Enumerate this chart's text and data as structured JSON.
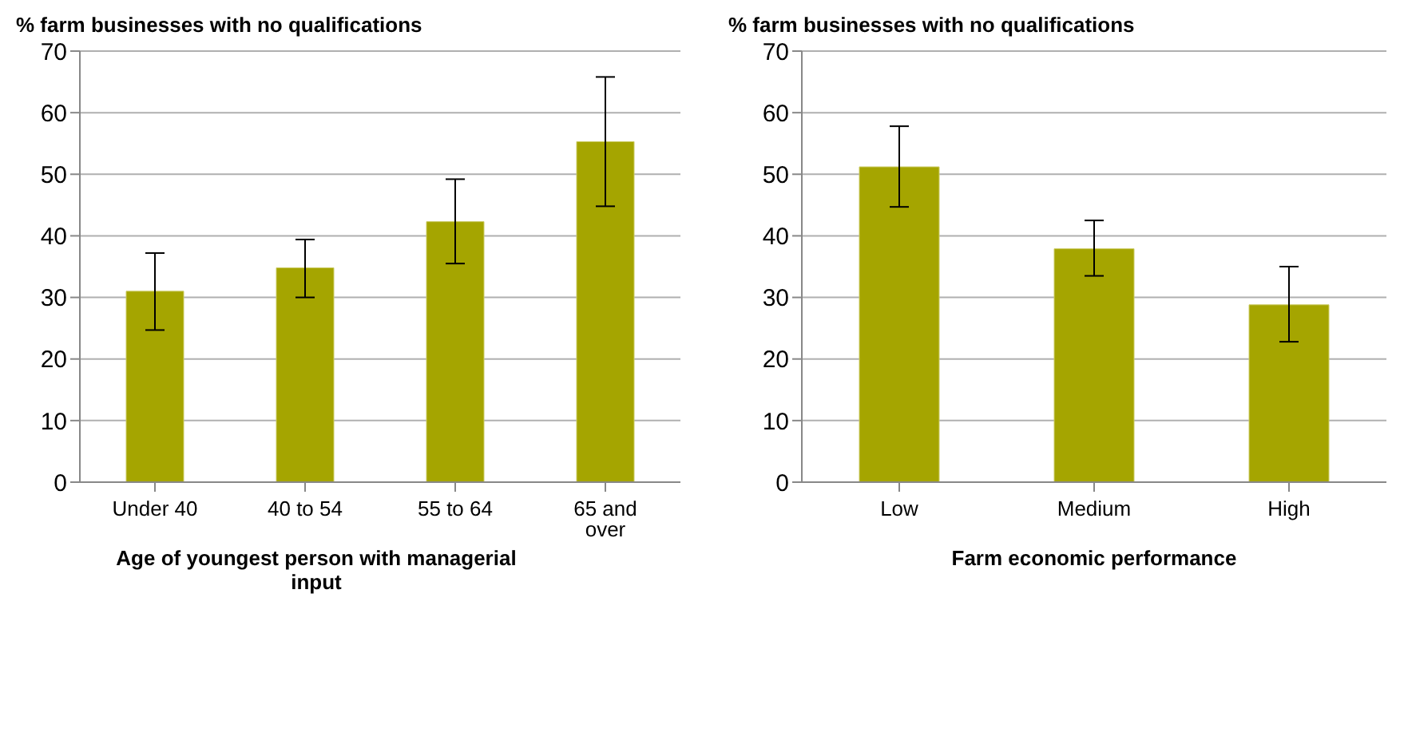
{
  "chart_data": [
    {
      "type": "bar",
      "ylabel": "% farm businesses with no qualifications",
      "xlabel": "Age of youngest person with managerial input",
      "categories": [
        "Under 40",
        "40 to 54",
        "55 to 64",
        "65 and over"
      ],
      "values": [
        31,
        34.8,
        42.3,
        55.3
      ],
      "errors": [
        [
          24.7,
          37.2
        ],
        [
          30,
          39.4
        ],
        [
          35.5,
          49.2
        ],
        [
          44.8,
          65.8
        ]
      ],
      "color": "#a5a500",
      "ylim": [
        0,
        70
      ],
      "yticks": [
        0,
        10,
        20,
        30,
        40,
        50,
        60,
        70
      ],
      "grid": "y",
      "legend": false
    },
    {
      "type": "bar",
      "ylabel": "% farm businesses with no qualifications",
      "xlabel": "Farm economic performance",
      "categories": [
        "Low",
        "Medium",
        "High"
      ],
      "values": [
        51.2,
        37.9,
        28.8
      ],
      "errors": [
        [
          44.7,
          57.8
        ],
        [
          33.5,
          42.5
        ],
        [
          22.8,
          35
        ]
      ],
      "color": "#a5a500",
      "ylim": [
        0,
        70
      ],
      "yticks": [
        0,
        10,
        20,
        30,
        40,
        50,
        60,
        70
      ],
      "grid": "y",
      "legend": false
    }
  ]
}
